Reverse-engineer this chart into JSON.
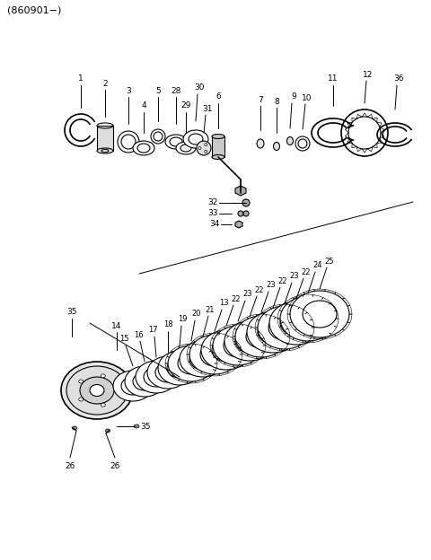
{
  "title": "(860901−)",
  "bg_color": "#ffffff",
  "fg_color": "#000000",
  "fig_width": 4.8,
  "fig_height": 6.24,
  "dpi": 100
}
